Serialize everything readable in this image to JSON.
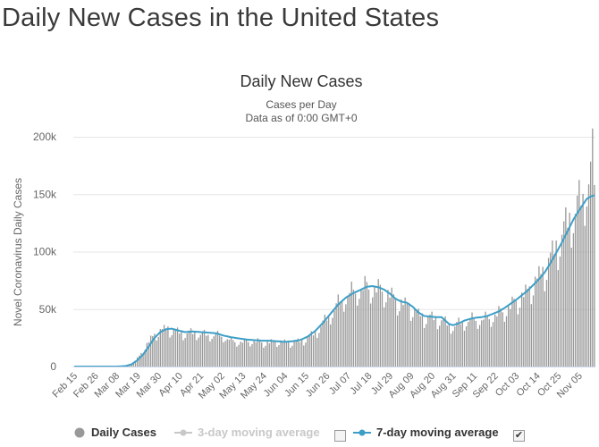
{
  "page": {
    "title": "Daily New Cases in the United States"
  },
  "chart_data": {
    "type": "bar",
    "title": "Daily New Cases",
    "subtitle_line1": "Cases per Day",
    "subtitle_line2": "Data as of 0:00 GMT+0",
    "ylabel": "Novel Coronavirus Daily Cases",
    "ylim": [
      0,
      200000
    ],
    "y_ticks": [
      0,
      50000,
      100000,
      150000,
      200000
    ],
    "y_tick_labels": [
      "0",
      "50k",
      "100k",
      "150k",
      "200k"
    ],
    "x_start": "Feb 15",
    "x_tick_labels": [
      "Feb 15",
      "Feb 26",
      "Mar 08",
      "Mar 19",
      "Mar 30",
      "Apr 10",
      "Apr 21",
      "May 02",
      "May 13",
      "May 24",
      "Jun 04",
      "Jun 15",
      "Jun 26",
      "Jul 07",
      "Jul 18",
      "Jul 29",
      "Aug 09",
      "Aug 20",
      "Aug 31",
      "Sep 11",
      "Sep 22",
      "Oct 03",
      "Oct 14",
      "Oct 25",
      "Nov 05"
    ],
    "days": 273,
    "series": [
      {
        "name": "Daily Cases",
        "kind": "bar",
        "color": "#999999",
        "anchors": [
          [
            0,
            0
          ],
          [
            18,
            5
          ],
          [
            22,
            40
          ],
          [
            25,
            200
          ],
          [
            28,
            900
          ],
          [
            31,
            3500
          ],
          [
            34,
            9000
          ],
          [
            37,
            17000
          ],
          [
            40,
            24000
          ],
          [
            43,
            29000
          ],
          [
            46,
            32000
          ],
          [
            49,
            33000
          ],
          [
            52,
            31000
          ],
          [
            55,
            30000
          ],
          [
            58,
            29000
          ],
          [
            62,
            30000
          ],
          [
            66,
            29000
          ],
          [
            70,
            28000
          ],
          [
            74,
            28000
          ],
          [
            78,
            27000
          ],
          [
            82,
            23000
          ],
          [
            86,
            22000
          ],
          [
            90,
            22000
          ],
          [
            94,
            23000
          ],
          [
            98,
            21000
          ],
          [
            102,
            21000
          ],
          [
            106,
            22000
          ],
          [
            110,
            21000
          ],
          [
            114,
            21000
          ],
          [
            118,
            22000
          ],
          [
            122,
            25000
          ],
          [
            126,
            30000
          ],
          [
            130,
            38000
          ],
          [
            134,
            47000
          ],
          [
            138,
            56000
          ],
          [
            142,
            63000
          ],
          [
            146,
            67000
          ],
          [
            150,
            69000
          ],
          [
            153,
            71000
          ],
          [
            156,
            70000
          ],
          [
            159,
            68000
          ],
          [
            162,
            66000
          ],
          [
            165,
            63000
          ],
          [
            168,
            58000
          ],
          [
            171,
            55000
          ],
          [
            174,
            53000
          ],
          [
            177,
            50000
          ],
          [
            180,
            45000
          ],
          [
            183,
            43000
          ],
          [
            186,
            43000
          ],
          [
            189,
            42000
          ],
          [
            192,
            41000
          ],
          [
            195,
            38000
          ],
          [
            198,
            36000
          ],
          [
            201,
            38000
          ],
          [
            204,
            40000
          ],
          [
            207,
            42000
          ],
          [
            210,
            42000
          ],
          [
            213,
            42000
          ],
          [
            216,
            43000
          ],
          [
            219,
            45000
          ],
          [
            222,
            47000
          ],
          [
            225,
            50000
          ],
          [
            228,
            53000
          ],
          [
            231,
            57000
          ],
          [
            234,
            61000
          ],
          [
            237,
            65000
          ],
          [
            240,
            72000
          ],
          [
            243,
            78000
          ],
          [
            246,
            84000
          ],
          [
            249,
            95000
          ],
          [
            252,
            104000
          ],
          [
            255,
            115000
          ],
          [
            258,
            128000
          ],
          [
            261,
            135000
          ],
          [
            264,
            145000
          ],
          [
            266,
            152000
          ],
          [
            268,
            162000
          ],
          [
            270,
            175000
          ],
          [
            271,
            185000
          ],
          [
            272,
            158000
          ]
        ]
      },
      {
        "name": "3-day moving average",
        "kind": "line",
        "color": "#c8c8c8",
        "visible": false
      },
      {
        "name": "7-day moving average",
        "kind": "line",
        "color": "#3d9fc7",
        "visible": true,
        "anchors": [
          [
            0,
            0
          ],
          [
            20,
            0
          ],
          [
            24,
            100
          ],
          [
            27,
            500
          ],
          [
            30,
            2000
          ],
          [
            33,
            5500
          ],
          [
            36,
            10500
          ],
          [
            39,
            17500
          ],
          [
            42,
            25000
          ],
          [
            45,
            30000
          ],
          [
            48,
            32500
          ],
          [
            51,
            33000
          ],
          [
            54,
            31500
          ],
          [
            58,
            30000
          ],
          [
            62,
            30500
          ],
          [
            66,
            30000
          ],
          [
            70,
            29500
          ],
          [
            74,
            29000
          ],
          [
            78,
            27000
          ],
          [
            82,
            25500
          ],
          [
            86,
            24500
          ],
          [
            90,
            23500
          ],
          [
            94,
            23000
          ],
          [
            98,
            22500
          ],
          [
            102,
            22500
          ],
          [
            106,
            22000
          ],
          [
            110,
            21500
          ],
          [
            114,
            22000
          ],
          [
            118,
            23000
          ],
          [
            122,
            26000
          ],
          [
            126,
            31000
          ],
          [
            130,
            38000
          ],
          [
            134,
            46000
          ],
          [
            138,
            54000
          ],
          [
            142,
            60000
          ],
          [
            146,
            64000
          ],
          [
            150,
            67000
          ],
          [
            153,
            69500
          ],
          [
            156,
            70000
          ],
          [
            159,
            69000
          ],
          [
            162,
            67000
          ],
          [
            165,
            63500
          ],
          [
            168,
            59000
          ],
          [
            171,
            56500
          ],
          [
            174,
            55500
          ],
          [
            177,
            52000
          ],
          [
            180,
            47000
          ],
          [
            183,
            44000
          ],
          [
            186,
            43500
          ],
          [
            189,
            43000
          ],
          [
            192,
            43000
          ],
          [
            194,
            40000
          ],
          [
            196,
            37000
          ],
          [
            198,
            36000
          ],
          [
            201,
            37500
          ],
          [
            204,
            40000
          ],
          [
            207,
            41500
          ],
          [
            210,
            42500
          ],
          [
            213,
            43000
          ],
          [
            216,
            44000
          ],
          [
            219,
            46000
          ],
          [
            222,
            48000
          ],
          [
            225,
            51000
          ],
          [
            228,
            54500
          ],
          [
            231,
            58000
          ],
          [
            234,
            62000
          ],
          [
            237,
            66000
          ],
          [
            240,
            71000
          ],
          [
            243,
            76000
          ],
          [
            246,
            82000
          ],
          [
            249,
            90000
          ],
          [
            252,
            99000
          ],
          [
            255,
            108000
          ],
          [
            258,
            118000
          ],
          [
            261,
            128000
          ],
          [
            264,
            136000
          ],
          [
            266,
            141000
          ],
          [
            268,
            146000
          ],
          [
            270,
            148000
          ],
          [
            272,
            149000
          ]
        ]
      }
    ],
    "legend": [
      {
        "label": "Daily Cases",
        "checked": null
      },
      {
        "label": "3-day moving average",
        "checked": "☐"
      },
      {
        "label": "7-day moving average",
        "checked": "✔"
      }
    ]
  }
}
